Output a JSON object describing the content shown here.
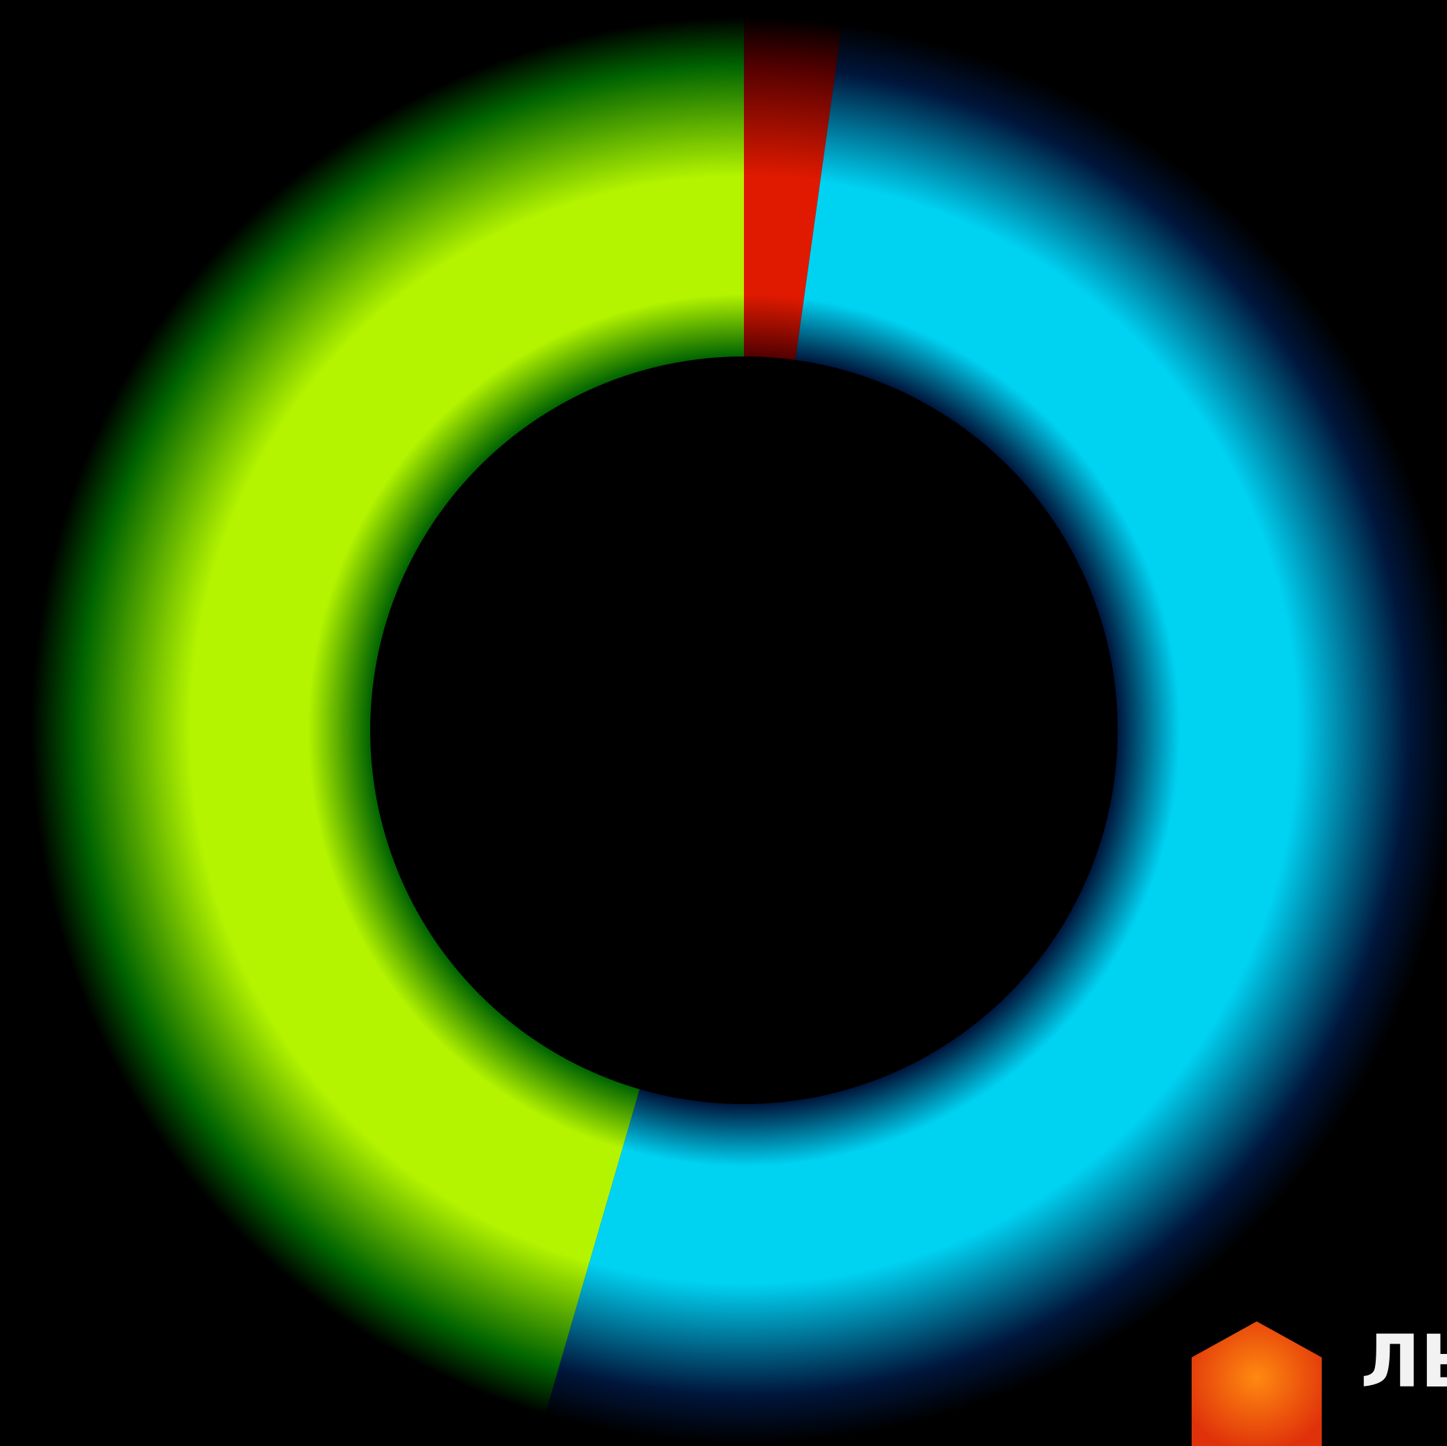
{
  "chart_data": {
    "type": "pie",
    "variant": "donut",
    "title": "",
    "legend": "none",
    "slices": [
      {
        "value": 2.2,
        "color": "#e01a00",
        "dark_color": "#520000"
      },
      {
        "value": 52.3,
        "color": "#00d2f2",
        "dark_color": "#00163c"
      },
      {
        "value": 45.5,
        "color": "#b4f400",
        "dark_color": "#006400"
      }
    ],
    "start_angle_deg": 0,
    "direction": "clockwise"
  },
  "watermark": {
    "text": "ЛЬ",
    "icon": "orange-cube-icon",
    "colors": {
      "cube_light": "#ff8a10",
      "cube_dark": "#e0320a",
      "text": "#f2f2f2"
    }
  },
  "background_color": "#000000"
}
